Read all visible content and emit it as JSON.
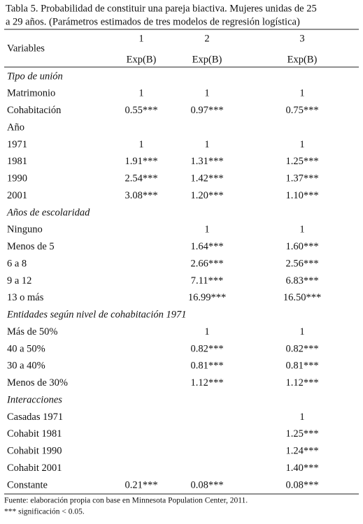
{
  "title": [
    "Tabla 5. Probabilidad de constituir una pareja biactiva. Mujeres unidas de 25",
    "a 29 años. (Parámetros estimados de tres modelos de regresión logística)"
  ],
  "table": {
    "header": {
      "variables": "Variables",
      "models": [
        "1",
        "2",
        "3"
      ],
      "stat": [
        "Exp(B)",
        "Exp(B)",
        "Exp(B)"
      ]
    },
    "rows": [
      {
        "section": "Tipo de unión"
      },
      {
        "label": "Matrimonio",
        "values": [
          "1",
          "1",
          "1"
        ]
      },
      {
        "label": "Cohabitación",
        "values": [
          "0.55***",
          "0.97***",
          "0.75***"
        ]
      },
      {
        "label": "Año"
      },
      {
        "label": "1971",
        "values": [
          "1",
          "1",
          "1"
        ]
      },
      {
        "label": "1981",
        "values": [
          "1.91***",
          "1.31***",
          "1.25***"
        ]
      },
      {
        "label": "1990",
        "values": [
          "2.54***",
          "1.42***",
          "1.37***"
        ]
      },
      {
        "label": "2001",
        "values": [
          "3.08***",
          "1.20***",
          "1.10***"
        ]
      },
      {
        "section": "Años de escolaridad"
      },
      {
        "label": "Ninguno",
        "values": [
          null,
          "1",
          "1"
        ]
      },
      {
        "label": "Menos de 5",
        "values": [
          null,
          "1.64***",
          "1.60***"
        ]
      },
      {
        "label": "6 a 8",
        "values": [
          null,
          "2.66***",
          "2.56***"
        ]
      },
      {
        "label": "9 a 12",
        "values": [
          null,
          "7.11***",
          "6.83***"
        ]
      },
      {
        "label": "13 o más",
        "values": [
          null,
          "16.99***",
          "16.50***"
        ]
      },
      {
        "section": "Entidades según nivel de cohabitación 1971"
      },
      {
        "label": "Más de 50%",
        "values": [
          null,
          "1",
          "1"
        ]
      },
      {
        "label": "40 a 50%",
        "values": [
          null,
          "0.82***",
          "0.82***"
        ]
      },
      {
        "label": "30 a 40%",
        "values": [
          null,
          "0.81***",
          "0.81***"
        ]
      },
      {
        "label": "Menos de 30%",
        "values": [
          null,
          "1.12***",
          "1.12***"
        ]
      },
      {
        "section": "Interacciones"
      },
      {
        "label": "Casadas 1971",
        "values": [
          null,
          null,
          "1"
        ]
      },
      {
        "label": "Cohabit 1981",
        "values": [
          null,
          null,
          "1.25***"
        ]
      },
      {
        "label": "Cohabit 1990",
        "values": [
          null,
          null,
          "1.24***"
        ]
      },
      {
        "label": "Cohabit 2001",
        "values": [
          null,
          null,
          "1.40***"
        ]
      },
      {
        "label": "Constante",
        "values": [
          "0.21***",
          "0.08***",
          "0.08***"
        ]
      }
    ]
  },
  "footnotes": [
    "Fuente: elaboración propia con base en Minnesota Population Center, 2011.",
    "*** significación < 0.05."
  ]
}
